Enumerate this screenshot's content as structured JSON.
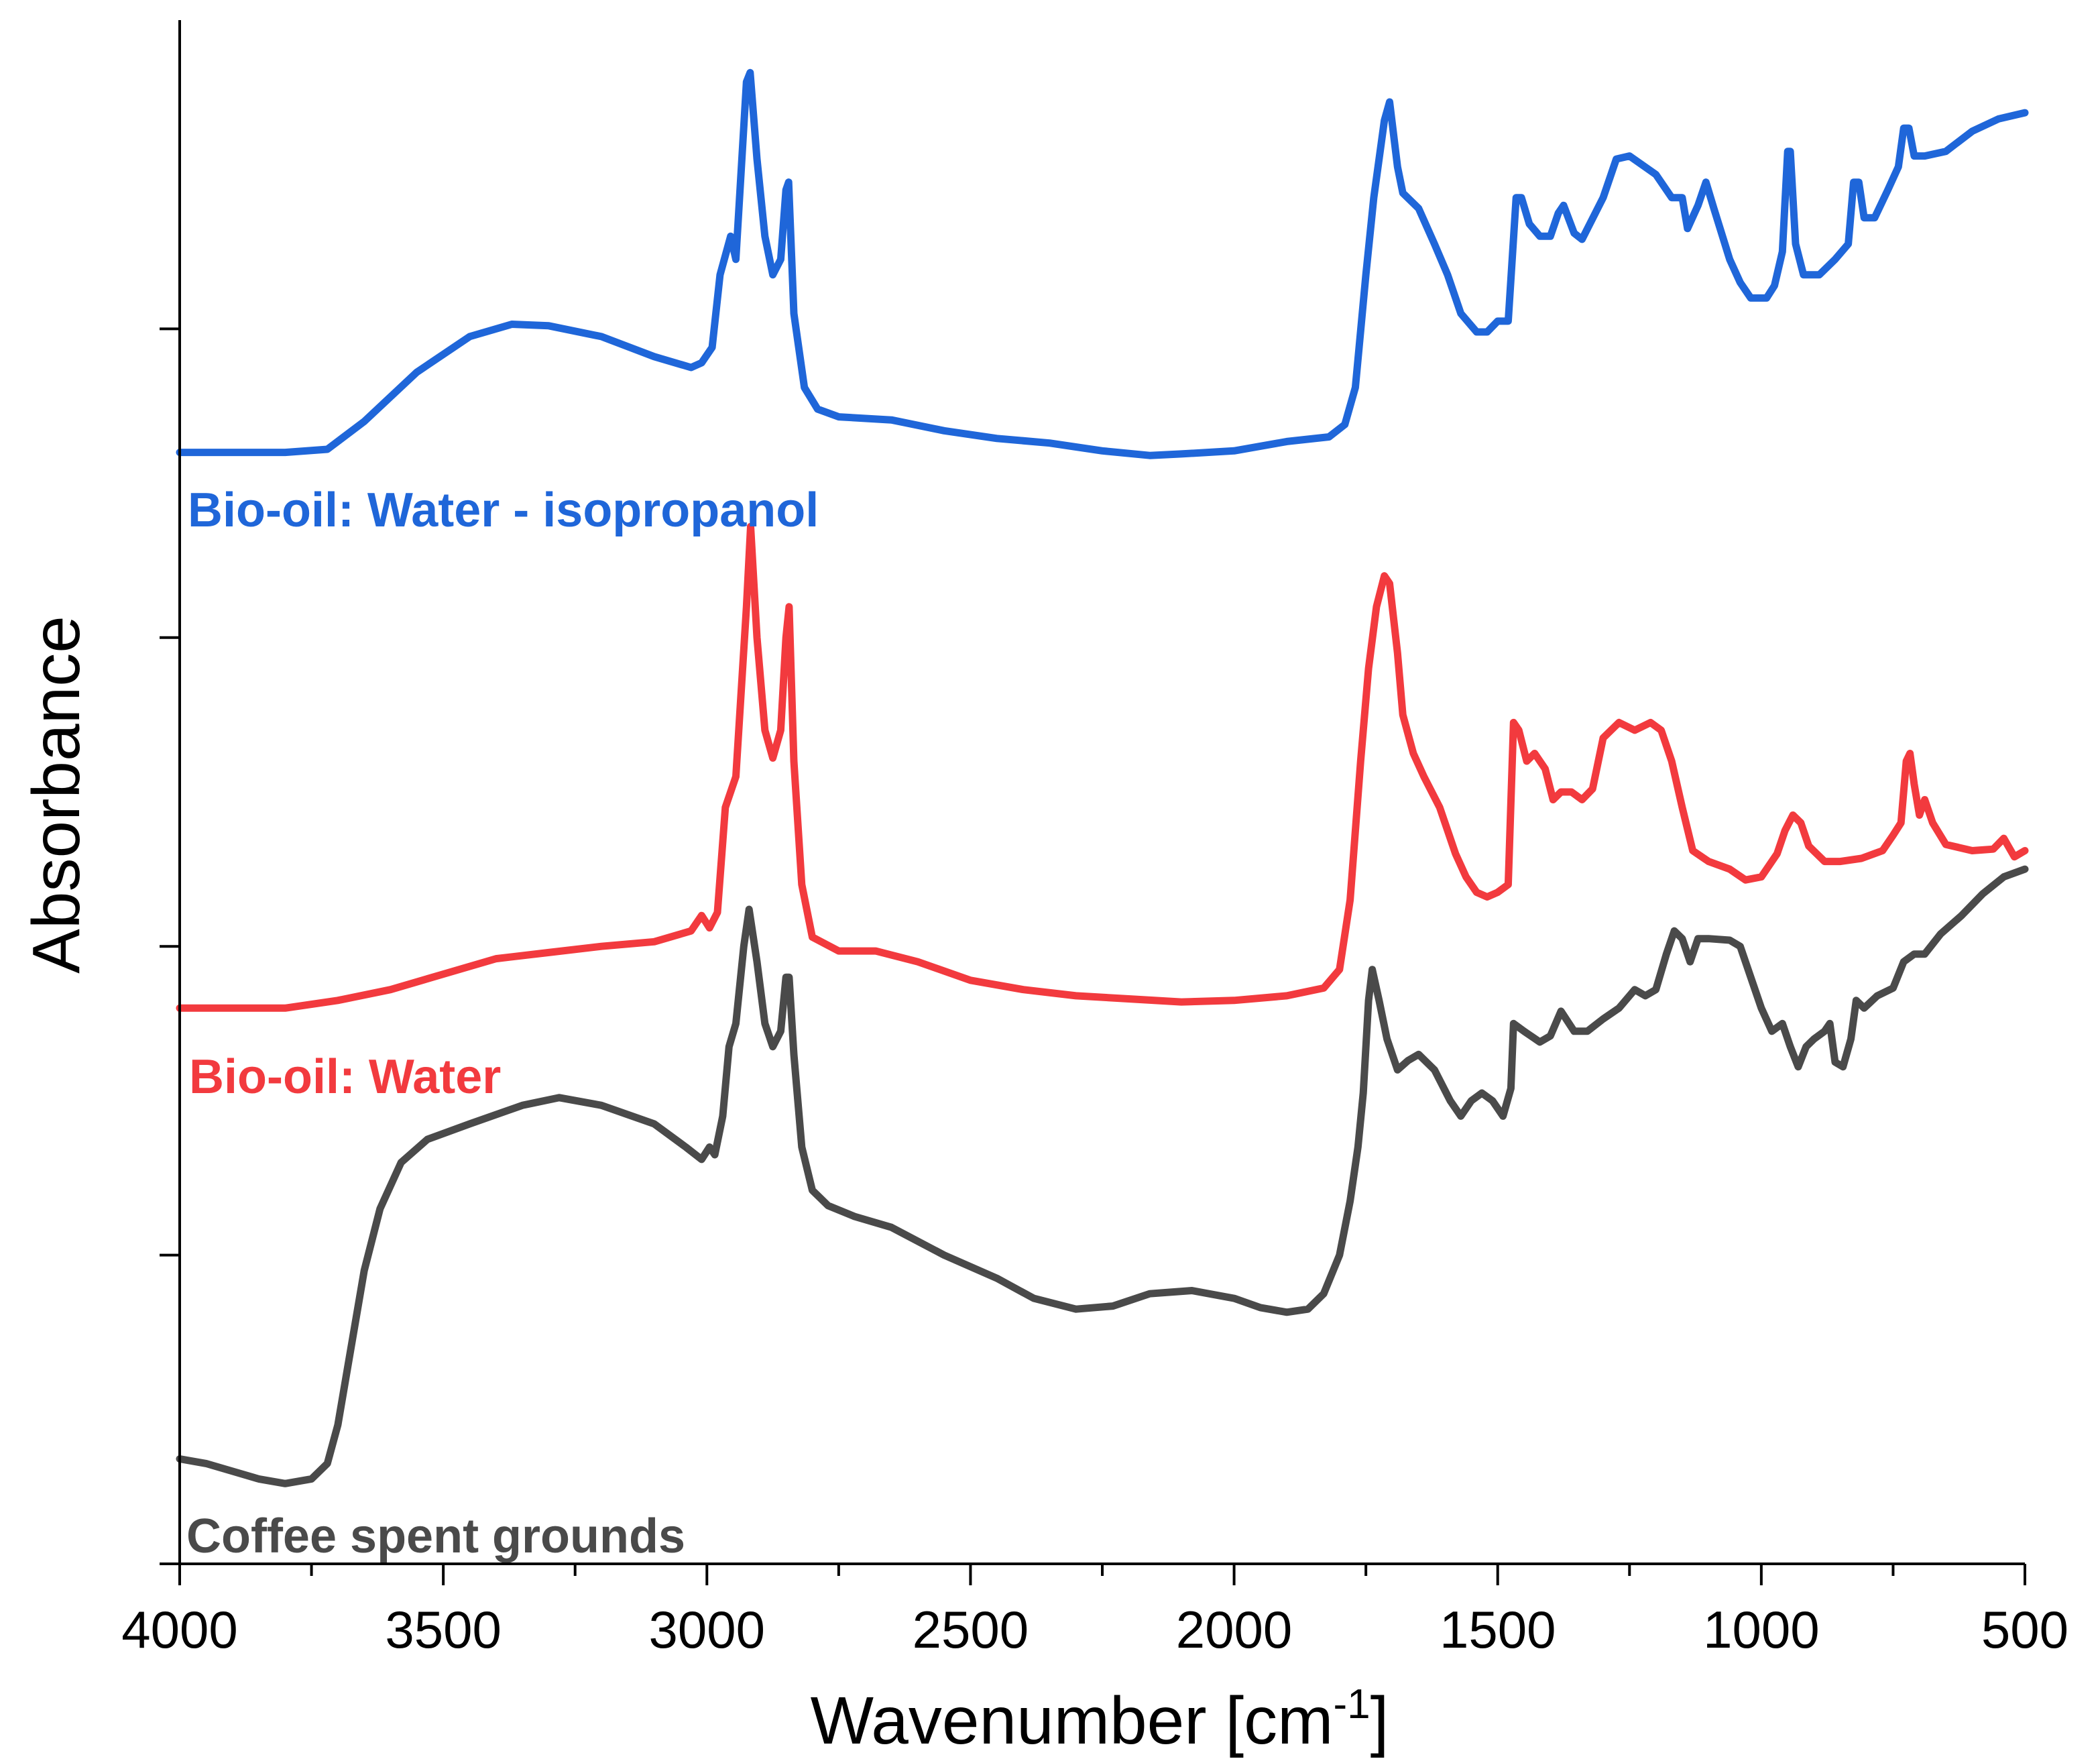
{
  "chart_data": {
    "type": "line",
    "title": "",
    "xlabel": "Wavenumber [cm",
    "xlabel_superscript": "-1",
    "xlabel_suffix": "]",
    "ylabel": "Absorbance",
    "xlim": [
      4000,
      500
    ],
    "x_direction": "decreasing",
    "x_ticks": [
      4000,
      3500,
      3000,
      2500,
      2000,
      1500,
      1000,
      500
    ],
    "y_units": "arbitrary (stacked offset)",
    "ylim": [
      0,
      10
    ],
    "y_ticks": [
      0,
      2,
      4,
      6,
      8
    ],
    "y_tick_labels_shown": false,
    "grid": false,
    "series": [
      {
        "name": "Bio-oil: Water - isopropanol",
        "color": "#1f66d9",
        "points": [
          [
            4000,
            7.2
          ],
          [
            3800,
            7.2
          ],
          [
            3720,
            7.22
          ],
          [
            3650,
            7.4
          ],
          [
            3550,
            7.72
          ],
          [
            3450,
            7.95
          ],
          [
            3370,
            8.03
          ],
          [
            3300,
            8.02
          ],
          [
            3200,
            7.95
          ],
          [
            3100,
            7.82
          ],
          [
            3030,
            7.75
          ],
          [
            3010,
            7.78
          ],
          [
            2990,
            7.88
          ],
          [
            2975,
            8.35
          ],
          [
            2955,
            8.6
          ],
          [
            2945,
            8.45
          ],
          [
            2925,
            9.6
          ],
          [
            2918,
            9.66
          ],
          [
            2905,
            9.1
          ],
          [
            2890,
            8.6
          ],
          [
            2875,
            8.35
          ],
          [
            2860,
            8.45
          ],
          [
            2850,
            8.9
          ],
          [
            2845,
            8.95
          ],
          [
            2835,
            8.1
          ],
          [
            2815,
            7.62
          ],
          [
            2790,
            7.48
          ],
          [
            2750,
            7.43
          ],
          [
            2650,
            7.41
          ],
          [
            2550,
            7.34
          ],
          [
            2450,
            7.29
          ],
          [
            2350,
            7.26
          ],
          [
            2250,
            7.21
          ],
          [
            2160,
            7.18
          ],
          [
            2100,
            7.19
          ],
          [
            2000,
            7.21
          ],
          [
            1900,
            7.27
          ],
          [
            1820,
            7.3
          ],
          [
            1790,
            7.38
          ],
          [
            1770,
            7.62
          ],
          [
            1750,
            8.35
          ],
          [
            1735,
            8.85
          ],
          [
            1715,
            9.35
          ],
          [
            1705,
            9.47
          ],
          [
            1690,
            9.05
          ],
          [
            1680,
            8.88
          ],
          [
            1650,
            8.78
          ],
          [
            1620,
            8.55
          ],
          [
            1595,
            8.35
          ],
          [
            1570,
            8.1
          ],
          [
            1540,
            7.98
          ],
          [
            1520,
            7.98
          ],
          [
            1500,
            8.05
          ],
          [
            1480,
            8.05
          ],
          [
            1465,
            8.85
          ],
          [
            1455,
            8.85
          ],
          [
            1440,
            8.68
          ],
          [
            1420,
            8.6
          ],
          [
            1400,
            8.6
          ],
          [
            1385,
            8.75
          ],
          [
            1375,
            8.8
          ],
          [
            1355,
            8.62
          ],
          [
            1340,
            8.58
          ],
          [
            1300,
            8.85
          ],
          [
            1275,
            9.1
          ],
          [
            1250,
            9.12
          ],
          [
            1200,
            9.0
          ],
          [
            1170,
            8.85
          ],
          [
            1150,
            8.85
          ],
          [
            1140,
            8.65
          ],
          [
            1120,
            8.8
          ],
          [
            1105,
            8.95
          ],
          [
            1090,
            8.78
          ],
          [
            1060,
            8.45
          ],
          [
            1040,
            8.3
          ],
          [
            1020,
            8.2
          ],
          [
            990,
            8.2
          ],
          [
            975,
            8.28
          ],
          [
            960,
            8.5
          ],
          [
            950,
            9.15
          ],
          [
            945,
            9.15
          ],
          [
            935,
            8.55
          ],
          [
            920,
            8.35
          ],
          [
            890,
            8.35
          ],
          [
            860,
            8.45
          ],
          [
            835,
            8.55
          ],
          [
            825,
            8.95
          ],
          [
            815,
            8.95
          ],
          [
            805,
            8.72
          ],
          [
            785,
            8.72
          ],
          [
            760,
            8.9
          ],
          [
            740,
            9.05
          ],
          [
            730,
            9.3
          ],
          [
            720,
            9.3
          ],
          [
            710,
            9.12
          ],
          [
            690,
            9.12
          ],
          [
            650,
            9.15
          ],
          [
            600,
            9.28
          ],
          [
            550,
            9.36
          ],
          [
            500,
            9.4
          ]
        ]
      },
      {
        "name": "Bio-oil: Water",
        "color": "#f23a3e",
        "points": [
          [
            4000,
            3.6
          ],
          [
            3800,
            3.6
          ],
          [
            3700,
            3.65
          ],
          [
            3600,
            3.72
          ],
          [
            3500,
            3.82
          ],
          [
            3400,
            3.92
          ],
          [
            3300,
            3.96
          ],
          [
            3200,
            4.0
          ],
          [
            3100,
            4.03
          ],
          [
            3030,
            4.1
          ],
          [
            3010,
            4.2
          ],
          [
            2995,
            4.12
          ],
          [
            2980,
            4.22
          ],
          [
            2965,
            4.9
          ],
          [
            2945,
            5.1
          ],
          [
            2925,
            6.2
          ],
          [
            2917,
            6.72
          ],
          [
            2905,
            6.0
          ],
          [
            2890,
            5.4
          ],
          [
            2875,
            5.22
          ],
          [
            2860,
            5.4
          ],
          [
            2850,
            6.0
          ],
          [
            2844,
            6.2
          ],
          [
            2835,
            5.2
          ],
          [
            2820,
            4.4
          ],
          [
            2800,
            4.06
          ],
          [
            2750,
            3.97
          ],
          [
            2680,
            3.97
          ],
          [
            2600,
            3.9
          ],
          [
            2500,
            3.78
          ],
          [
            2400,
            3.72
          ],
          [
            2300,
            3.68
          ],
          [
            2200,
            3.66
          ],
          [
            2100,
            3.64
          ],
          [
            2000,
            3.65
          ],
          [
            1900,
            3.68
          ],
          [
            1830,
            3.73
          ],
          [
            1800,
            3.85
          ],
          [
            1780,
            4.3
          ],
          [
            1760,
            5.2
          ],
          [
            1745,
            5.8
          ],
          [
            1730,
            6.2
          ],
          [
            1715,
            6.4
          ],
          [
            1705,
            6.35
          ],
          [
            1690,
            5.9
          ],
          [
            1680,
            5.5
          ],
          [
            1660,
            5.25
          ],
          [
            1640,
            5.1
          ],
          [
            1610,
            4.9
          ],
          [
            1580,
            4.6
          ],
          [
            1560,
            4.45
          ],
          [
            1540,
            4.35
          ],
          [
            1520,
            4.32
          ],
          [
            1500,
            4.35
          ],
          [
            1480,
            4.4
          ],
          [
            1470,
            5.45
          ],
          [
            1460,
            5.4
          ],
          [
            1445,
            5.2
          ],
          [
            1430,
            5.25
          ],
          [
            1410,
            5.15
          ],
          [
            1395,
            4.95
          ],
          [
            1380,
            5.0
          ],
          [
            1360,
            5.0
          ],
          [
            1340,
            4.95
          ],
          [
            1320,
            5.02
          ],
          [
            1300,
            5.35
          ],
          [
            1270,
            5.45
          ],
          [
            1240,
            5.4
          ],
          [
            1210,
            5.45
          ],
          [
            1190,
            5.4
          ],
          [
            1170,
            5.2
          ],
          [
            1150,
            4.9
          ],
          [
            1130,
            4.62
          ],
          [
            1100,
            4.55
          ],
          [
            1060,
            4.5
          ],
          [
            1030,
            4.43
          ],
          [
            1000,
            4.45
          ],
          [
            970,
            4.6
          ],
          [
            955,
            4.75
          ],
          [
            940,
            4.85
          ],
          [
            925,
            4.8
          ],
          [
            910,
            4.65
          ],
          [
            880,
            4.55
          ],
          [
            850,
            4.55
          ],
          [
            810,
            4.57
          ],
          [
            770,
            4.62
          ],
          [
            750,
            4.72
          ],
          [
            735,
            4.8
          ],
          [
            725,
            5.2
          ],
          [
            718,
            5.25
          ],
          [
            710,
            5.05
          ],
          [
            700,
            4.85
          ],
          [
            690,
            4.95
          ],
          [
            675,
            4.8
          ],
          [
            650,
            4.66
          ],
          [
            600,
            4.62
          ],
          [
            560,
            4.63
          ],
          [
            540,
            4.7
          ],
          [
            520,
            4.58
          ],
          [
            500,
            4.62
          ]
        ]
      },
      {
        "name": "Coffee spent grounds",
        "color": "#4a4a4a",
        "points": [
          [
            4000,
            0.68
          ],
          [
            3950,
            0.65
          ],
          [
            3900,
            0.6
          ],
          [
            3850,
            0.55
          ],
          [
            3800,
            0.52
          ],
          [
            3750,
            0.55
          ],
          [
            3720,
            0.65
          ],
          [
            3700,
            0.9
          ],
          [
            3680,
            1.3
          ],
          [
            3650,
            1.9
          ],
          [
            3620,
            2.3
          ],
          [
            3580,
            2.6
          ],
          [
            3530,
            2.75
          ],
          [
            3450,
            2.85
          ],
          [
            3350,
            2.97
          ],
          [
            3280,
            3.02
          ],
          [
            3200,
            2.97
          ],
          [
            3100,
            2.85
          ],
          [
            3040,
            2.7
          ],
          [
            3010,
            2.62
          ],
          [
            2995,
            2.7
          ],
          [
            2985,
            2.65
          ],
          [
            2970,
            2.9
          ],
          [
            2958,
            3.35
          ],
          [
            2945,
            3.5
          ],
          [
            2930,
            4.0
          ],
          [
            2920,
            4.24
          ],
          [
            2905,
            3.9
          ],
          [
            2890,
            3.5
          ],
          [
            2875,
            3.35
          ],
          [
            2860,
            3.45
          ],
          [
            2850,
            3.8
          ],
          [
            2844,
            3.8
          ],
          [
            2835,
            3.3
          ],
          [
            2820,
            2.7
          ],
          [
            2800,
            2.42
          ],
          [
            2770,
            2.32
          ],
          [
            2720,
            2.25
          ],
          [
            2650,
            2.18
          ],
          [
            2550,
            2.0
          ],
          [
            2450,
            1.85
          ],
          [
            2380,
            1.72
          ],
          [
            2300,
            1.65
          ],
          [
            2230,
            1.67
          ],
          [
            2160,
            1.75
          ],
          [
            2080,
            1.77
          ],
          [
            2000,
            1.72
          ],
          [
            1950,
            1.66
          ],
          [
            1900,
            1.63
          ],
          [
            1860,
            1.65
          ],
          [
            1830,
            1.75
          ],
          [
            1800,
            2.0
          ],
          [
            1780,
            2.35
          ],
          [
            1765,
            2.7
          ],
          [
            1755,
            3.05
          ],
          [
            1745,
            3.65
          ],
          [
            1738,
            3.85
          ],
          [
            1725,
            3.65
          ],
          [
            1710,
            3.4
          ],
          [
            1690,
            3.2
          ],
          [
            1670,
            3.26
          ],
          [
            1650,
            3.3
          ],
          [
            1620,
            3.2
          ],
          [
            1590,
            3.0
          ],
          [
            1570,
            2.9
          ],
          [
            1550,
            3.0
          ],
          [
            1530,
            3.05
          ],
          [
            1510,
            3.0
          ],
          [
            1490,
            2.9
          ],
          [
            1475,
            3.08
          ],
          [
            1470,
            3.5
          ],
          [
            1450,
            3.45
          ],
          [
            1420,
            3.38
          ],
          [
            1400,
            3.42
          ],
          [
            1380,
            3.58
          ],
          [
            1355,
            3.45
          ],
          [
            1330,
            3.45
          ],
          [
            1300,
            3.53
          ],
          [
            1270,
            3.6
          ],
          [
            1240,
            3.72
          ],
          [
            1220,
            3.68
          ],
          [
            1200,
            3.72
          ],
          [
            1180,
            3.95
          ],
          [
            1165,
            4.1
          ],
          [
            1150,
            4.05
          ],
          [
            1135,
            3.9
          ],
          [
            1120,
            4.05
          ],
          [
            1100,
            4.05
          ],
          [
            1060,
            4.04
          ],
          [
            1040,
            4.0
          ],
          [
            1020,
            3.8
          ],
          [
            1000,
            3.6
          ],
          [
            980,
            3.45
          ],
          [
            960,
            3.5
          ],
          [
            945,
            3.35
          ],
          [
            930,
            3.22
          ],
          [
            915,
            3.35
          ],
          [
            900,
            3.4
          ],
          [
            880,
            3.45
          ],
          [
            870,
            3.5
          ],
          [
            860,
            3.25
          ],
          [
            845,
            3.22
          ],
          [
            830,
            3.4
          ],
          [
            820,
            3.65
          ],
          [
            805,
            3.6
          ],
          [
            780,
            3.68
          ],
          [
            750,
            3.73
          ],
          [
            730,
            3.9
          ],
          [
            710,
            3.95
          ],
          [
            690,
            3.95
          ],
          [
            660,
            4.08
          ],
          [
            620,
            4.2
          ],
          [
            580,
            4.34
          ],
          [
            540,
            4.45
          ],
          [
            500,
            4.5
          ]
        ]
      }
    ]
  }
}
